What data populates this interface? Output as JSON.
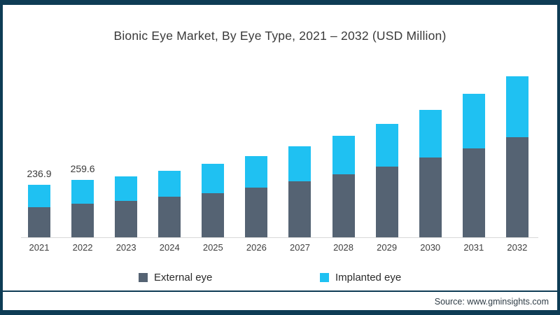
{
  "title": "Bionic Eye Market, By Eye Type, 2021 – 2032 (USD Million)",
  "source": "Source: www.gminsights.com",
  "frame": {
    "border_color": "#0e3c55",
    "background": "#ffffff"
  },
  "legend": [
    {
      "label": "External eye",
      "color": "#556373"
    },
    {
      "label": "Implanted eye",
      "color": "#1fc1f2"
    }
  ],
  "chart_data": {
    "type": "bar",
    "stacked": true,
    "title": "Bionic Eye Market, By Eye Type, 2021 – 2032 (USD Million)",
    "unit": "USD Million",
    "categories": [
      "2021",
      "2022",
      "2023",
      "2024",
      "2025",
      "2026",
      "2027",
      "2028",
      "2029",
      "2030",
      "2031",
      "2032"
    ],
    "series": [
      {
        "name": "External eye",
        "color": "#556373",
        "values": [
          138.0,
          152.0,
          164.0,
          183.0,
          201.0,
          226.0,
          254.0,
          286.0,
          322.0,
          361.0,
          403.0,
          454.0
        ]
      },
      {
        "name": "Implanted eye",
        "color": "#1fc1f2",
        "values": [
          98.9,
          107.6,
          112.0,
          119.0,
          132.0,
          143.0,
          158.0,
          173.0,
          193.0,
          217.0,
          247.0,
          276.0
        ]
      }
    ],
    "totals": [
      236.9,
      259.6,
      276,
      302,
      333,
      369,
      412,
      459,
      515,
      578,
      650,
      730
    ],
    "value_labels": [
      "236.9",
      "259.6",
      "",
      "",
      "",
      "",
      "",
      "",
      "",
      "",
      "",
      ""
    ],
    "xlabel": "",
    "ylabel": "",
    "ylim": [
      0,
      750
    ],
    "grid": false,
    "legend_position": "bottom",
    "axis_line_color": "#d8d8d8"
  }
}
